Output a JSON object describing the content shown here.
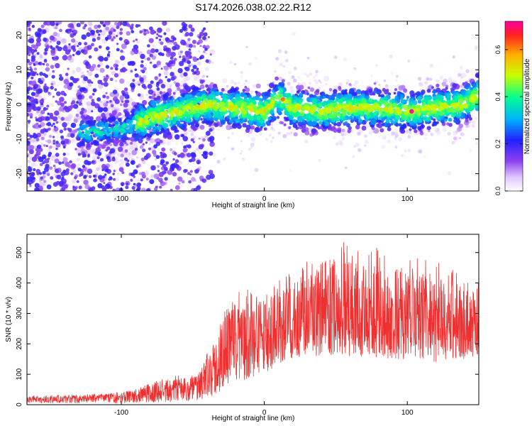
{
  "title": "S174.2026.038.02.22.R12",
  "chart_data": [
    {
      "type": "heatmap",
      "xlabel": "Height of straight line (km)",
      "ylabel": "Frequency (Hz)",
      "xlim": [
        -166,
        150
      ],
      "ylim": [
        -25,
        24
      ],
      "xticks": [
        -100,
        0,
        100
      ],
      "yticks": [
        -20,
        -10,
        0,
        10,
        20
      ],
      "colorbar": {
        "label": "Normalized spectral amplitude",
        "range": [
          0,
          0.72
        ],
        "ticks": [
          "0.0",
          "0.2",
          "0.4",
          "0.6"
        ]
      },
      "ridge": {
        "x": [
          -120,
          -100,
          -80,
          -60,
          -40,
          -20,
          0,
          10,
          20,
          40,
          60,
          80,
          100,
          120,
          140,
          150
        ],
        "freq": [
          -8,
          -7,
          -4,
          -2,
          0,
          -1,
          -2,
          2,
          -1,
          -2,
          -1,
          -1,
          -2,
          -1,
          0,
          3
        ],
        "peak_x": 103,
        "peak_freq": -2,
        "peak_amplitude": 0.72
      }
    },
    {
      "type": "line",
      "xlabel": "Height of straight line (km)",
      "ylabel": "SNR (10 * v/v)",
      "xlim": [
        -166,
        150
      ],
      "ylim": [
        0,
        560
      ],
      "xticks": [
        -100,
        0,
        100
      ],
      "yticks": [
        0,
        100,
        200,
        300,
        400,
        500
      ],
      "color": "#f03030",
      "envelope": {
        "x": [
          -166,
          -120,
          -100,
          -80,
          -60,
          -45,
          -35,
          -30,
          -20,
          -10,
          0,
          10,
          20,
          30,
          40,
          50,
          60,
          80,
          100,
          120,
          140,
          150
        ],
        "low": [
          5,
          5,
          5,
          8,
          10,
          15,
          30,
          40,
          60,
          80,
          100,
          130,
          150,
          160,
          160,
          160,
          160,
          150,
          150,
          140,
          150,
          150
        ],
        "high": [
          30,
          35,
          45,
          70,
          100,
          110,
          230,
          320,
          370,
          380,
          390,
          420,
          440,
          480,
          540,
          550,
          540,
          520,
          500,
          480,
          420,
          420
        ],
        "mean": [
          18,
          20,
          25,
          35,
          45,
          60,
          110,
          150,
          180,
          190,
          210,
          230,
          240,
          250,
          260,
          260,
          255,
          250,
          250,
          245,
          240,
          240
        ]
      }
    }
  ]
}
